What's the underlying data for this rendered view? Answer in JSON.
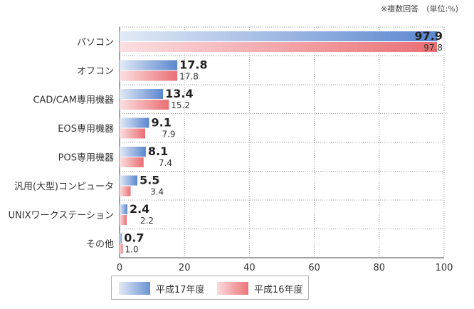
{
  "note": "※複数回答　(単位:%)",
  "colors": {
    "series_2005": "#5b87cf",
    "series_2004": "#ea6f73",
    "grid": "#888888"
  },
  "chart_data": {
    "type": "bar",
    "orientation": "horizontal",
    "categories": [
      "パソコン",
      "オフコン",
      "CAD/CAM専用機器",
      "EOS専用機器",
      "POS専用機器",
      "汎用(大型)コンピュータ",
      "UNIXワークステーション",
      "その他"
    ],
    "series": [
      {
        "name": "平成17年度",
        "values": [
          97.9,
          17.8,
          13.4,
          9.1,
          8.1,
          5.5,
          2.4,
          0.7
        ]
      },
      {
        "name": "平成16年度",
        "values": [
          97.8,
          17.8,
          15.2,
          7.9,
          7.4,
          3.4,
          2.2,
          1.0
        ]
      }
    ],
    "xlim": [
      0,
      100
    ],
    "xticks": [
      0,
      20,
      40,
      60,
      80,
      100
    ],
    "grid": true,
    "legend_position": "bottom"
  }
}
